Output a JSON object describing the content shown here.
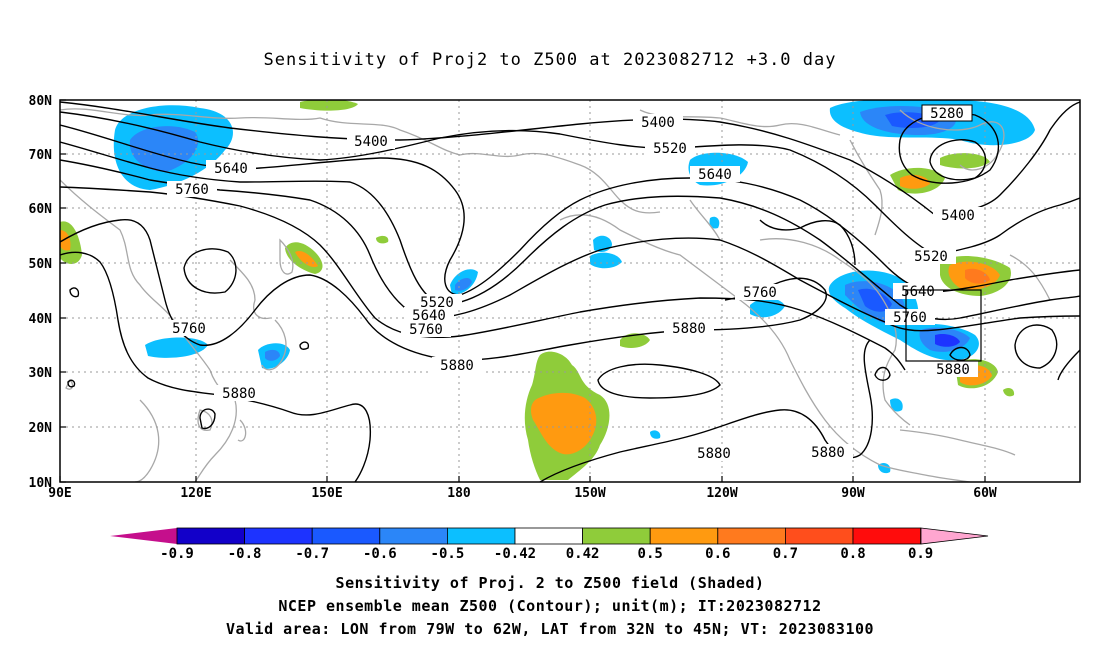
{
  "title": "Sensitivity of Proj2 to Z500 at 2023082712 +3.0 day",
  "lat_labels": [
    "80N",
    "70N",
    "60N",
    "50N",
    "40N",
    "30N",
    "20N",
    "10N"
  ],
  "lon_labels": [
    "90E",
    "120E",
    "150E",
    "180",
    "150W",
    "120W",
    "90W",
    "60W"
  ],
  "colorbar": {
    "labels": [
      "-0.9",
      "-0.8",
      "-0.7",
      "-0.6",
      "-0.5",
      "-0.42",
      "0.42",
      "0.5",
      "0.6",
      "0.7",
      "0.8",
      "0.9"
    ],
    "colors": [
      "#1200c9",
      "#1d33ff",
      "#1a59ff",
      "#2b86f8",
      "#0cbfff",
      "#ffffff",
      "#8fcc3a",
      "#ff9a10",
      "#ff7a1e",
      "#ff4e1c",
      "#ff0c0c"
    ],
    "low_end_color": "#c50f8c",
    "high_end_color": "#ffa6d0"
  },
  "contour_labels": [
    "5400",
    "5640",
    "5760",
    "5400",
    "5520",
    "5640",
    "5280",
    "5400",
    "5520",
    "5640",
    "5760",
    "5520",
    "5640",
    "5760",
    "5880",
    "5760",
    "5760",
    "5880",
    "5880",
    "5880",
    "5880",
    "5880"
  ],
  "valid_area": {
    "lon": [
      "79W",
      "62W"
    ],
    "lat": [
      "32N",
      "45N"
    ]
  },
  "captions": [
    "Sensitivity of Proj. 2 to Z500 field (Shaded)",
    "NCEP ensemble mean Z500 (Contour); unit(m); IT:2023082712",
    "Valid area: LON from 79W to 62W, LAT from 32N to 45N; VT: 2023083100"
  ]
}
